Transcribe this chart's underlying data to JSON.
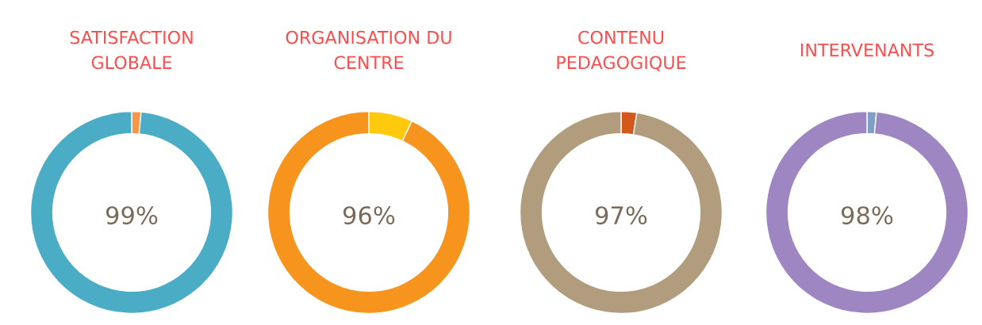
{
  "chart_data": [
    {
      "type": "donut",
      "title": "SATISFACTION\nGLOBALE",
      "categories": [
        null,
        null
      ],
      "values": [
        1.5,
        98.5
      ],
      "colors": [
        "#f79646",
        "#4bacc6"
      ],
      "annotations": [
        "99%"
      ]
    },
    {
      "type": "donut",
      "title": "ORGANISATION DU\nCENTRE",
      "categories": [
        null,
        null
      ],
      "values": [
        7,
        93
      ],
      "colors": [
        "#ffc90e",
        "#f7941d"
      ],
      "annotations": [
        "96%"
      ]
    },
    {
      "type": "donut",
      "title": "CONTENU\nPEDAGOGIQUE",
      "categories": [
        null,
        null
      ],
      "values": [
        2.5,
        97.5
      ],
      "colors": [
        "#d4571c",
        "#b19c7d"
      ],
      "annotations": [
        "97%"
      ]
    },
    {
      "type": "donut",
      "title": "INTERVENANTS",
      "categories": [
        null,
        null
      ],
      "values": [
        1.5,
        98.5
      ],
      "colors": [
        "#7f9fc4",
        "#9d86c1"
      ],
      "annotations": [
        "98%"
      ]
    }
  ]
}
